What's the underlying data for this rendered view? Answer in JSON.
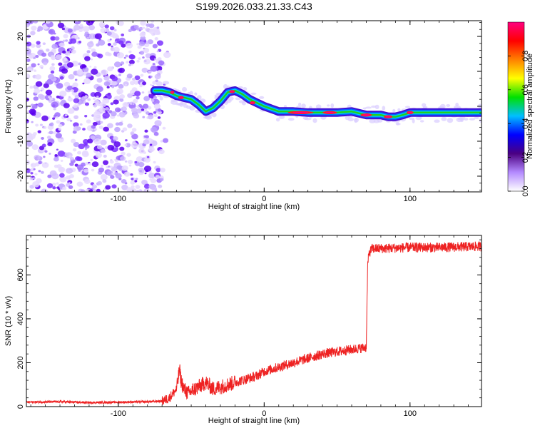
{
  "title": "S199.2026.033.21.33.C43",
  "chart_data": [
    {
      "type": "heatmap",
      "name": "spectrogram",
      "xlabel": "Height of straight line (km)",
      "ylabel": "Frequency (Hz)",
      "xlim": [
        -163,
        149
      ],
      "ylim": [
        -24.5,
        24.5
      ],
      "x_ticks": [
        -100,
        0,
        100
      ],
      "y_ticks": [
        -20,
        -10,
        0,
        10,
        20
      ],
      "noise_region": {
        "x": [
          -163,
          -70
        ],
        "y": [
          -24.5,
          24.5
        ]
      },
      "ridge": {
        "x": [
          -75,
          -70,
          -65,
          -60,
          -55,
          -50,
          -45,
          -40,
          -35,
          -30,
          -25,
          -20,
          -15,
          -10,
          -5,
          0,
          10,
          20,
          30,
          40,
          50,
          60,
          70,
          80,
          85,
          90,
          95,
          100,
          105,
          110,
          120,
          130,
          140,
          149
        ],
        "y": [
          4.5,
          4.5,
          4,
          3,
          2.5,
          2,
          0.5,
          -1.5,
          -0.5,
          1.5,
          4,
          4.5,
          3.5,
          2,
          1,
          0,
          -1.5,
          -1.5,
          -1.8,
          -1.8,
          -1.8,
          -1.5,
          -2.5,
          -2.5,
          -3,
          -3,
          -2.5,
          -1.8,
          -1.8,
          -1.8,
          -1.8,
          -1.8,
          -1.8,
          -1.8
        ]
      },
      "colorbar": {
        "label": "Normalized spectral amplitude",
        "ticks": [
          "0.0",
          "0.2",
          "0.4",
          "0.6",
          "0.8"
        ],
        "range": [
          0,
          1
        ],
        "colors": [
          "#ffffff",
          "#b48aff",
          "#4b0082",
          "#0000ff",
          "#00bfff",
          "#00e000",
          "#ffff00",
          "#ff8000",
          "#ff0000",
          "#ff0080"
        ]
      }
    },
    {
      "type": "line",
      "name": "snr",
      "xlabel": "Height of straight line (km)",
      "ylabel": "SNR (10 * v/v)",
      "xlim": [
        -163,
        149
      ],
      "ylim": [
        0,
        780
      ],
      "x_ticks": [
        -100,
        0,
        100
      ],
      "y_ticks": [
        0,
        200,
        400,
        600
      ],
      "color": "#ee2222",
      "series": [
        {
          "name": "SNR",
          "x": [
            -163,
            -140,
            -120,
            -100,
            -80,
            -70,
            -65,
            -60,
            -58,
            -57,
            -55,
            -52,
            -50,
            -45,
            -40,
            -35,
            -30,
            -25,
            -20,
            -15,
            -10,
            -5,
            0,
            10,
            20,
            30,
            40,
            50,
            60,
            65,
            70,
            71,
            72,
            74,
            80,
            100,
            120,
            149
          ],
          "y": [
            20,
            22,
            18,
            20,
            22,
            25,
            40,
            80,
            170,
            120,
            80,
            60,
            70,
            90,
            110,
            80,
            90,
            100,
            110,
            120,
            130,
            140,
            160,
            180,
            200,
            220,
            240,
            250,
            260,
            265,
            270,
            650,
            700,
            720,
            720,
            725,
            725,
            730
          ]
        }
      ]
    }
  ]
}
